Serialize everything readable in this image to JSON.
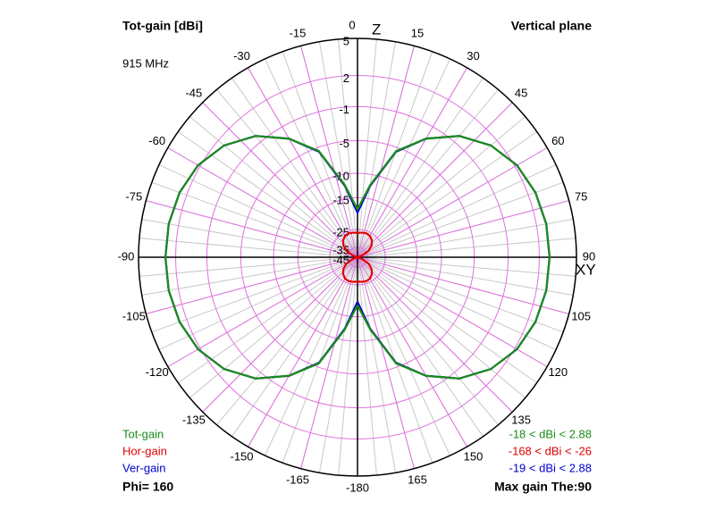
{
  "chart_data": {
    "type": "polar",
    "title": "Tot-gain [dBi]",
    "subtitle": "915 MHz",
    "plane_label": "Vertical plane",
    "footer_left": "Phi= 160",
    "footer_right": "Max gain The:90",
    "axis_labels": {
      "zenith": "Z",
      "horizon": "XY"
    },
    "scale": "ARRL",
    "rlim": [
      -45,
      5
    ],
    "rticks": [
      5,
      2,
      -1,
      -5,
      -10,
      -15,
      -25,
      -35,
      -45
    ],
    "thetaticks": [
      0,
      15,
      30,
      45,
      60,
      75,
      90,
      105,
      120,
      135,
      150,
      165,
      -180,
      -165,
      -150,
      -135,
      -120,
      -105,
      -90,
      -75,
      -60,
      -45,
      -30,
      -15
    ],
    "grid_color": "#e070e0",
    "x": [
      -180,
      -170,
      -160,
      -150,
      -140,
      -130,
      -120,
      -110,
      -100,
      -90,
      -80,
      -70,
      -60,
      -50,
      -40,
      -30,
      -20,
      -10,
      0,
      10,
      20,
      30,
      40,
      50,
      60,
      70,
      80,
      90,
      100,
      110,
      120,
      130,
      140,
      150,
      160,
      170,
      180
    ],
    "series": [
      {
        "name": "Tot-gain",
        "color": "#1a8c1a",
        "range": "-18 < dBi < 2.88",
        "values": [
          -18,
          -12,
          -5.5,
          -2.5,
          -0.2,
          1.3,
          2.2,
          2.65,
          2.85,
          2.88,
          2.85,
          2.65,
          2.2,
          1.3,
          -0.2,
          -2.5,
          -5.5,
          -12,
          -18,
          -12,
          -5.5,
          -2.5,
          -0.2,
          1.3,
          2.2,
          2.65,
          2.85,
          2.88,
          2.85,
          2.65,
          2.2,
          1.3,
          -0.2,
          -2.5,
          -5.5,
          -12,
          -18
        ]
      },
      {
        "name": "Hor-gain",
        "color": "#e00000",
        "range": "-168 < dBi < -26",
        "values": [
          -26.5,
          -26.2,
          -26,
          -26.3,
          -27.5,
          -29.5,
          -33,
          -40,
          -52,
          -168,
          -52,
          -40,
          -33,
          -29.5,
          -27.5,
          -26.3,
          -26,
          -26.2,
          -26.5,
          -26.2,
          -26,
          -26.3,
          -27.5,
          -29.5,
          -33,
          -40,
          -52,
          -168,
          -52,
          -40,
          -33,
          -29.5,
          -27.5,
          -26.3,
          -26,
          -26.2,
          -26.5
        ]
      },
      {
        "name": "Ver-gain",
        "color": "#0000cc",
        "range": "-19 < dBi < 2.88",
        "values": [
          -19,
          -12.2,
          -5.6,
          -2.5,
          -0.2,
          1.3,
          2.2,
          2.65,
          2.85,
          2.88,
          2.85,
          2.65,
          2.2,
          1.3,
          -0.2,
          -2.5,
          -5.6,
          -12.2,
          -19,
          -12.2,
          -5.6,
          -2.5,
          -0.2,
          1.3,
          2.2,
          2.65,
          2.85,
          2.88,
          2.85,
          2.65,
          2.2,
          1.3,
          -0.2,
          -2.5,
          -5.6,
          -12.2,
          -19
        ]
      }
    ]
  }
}
